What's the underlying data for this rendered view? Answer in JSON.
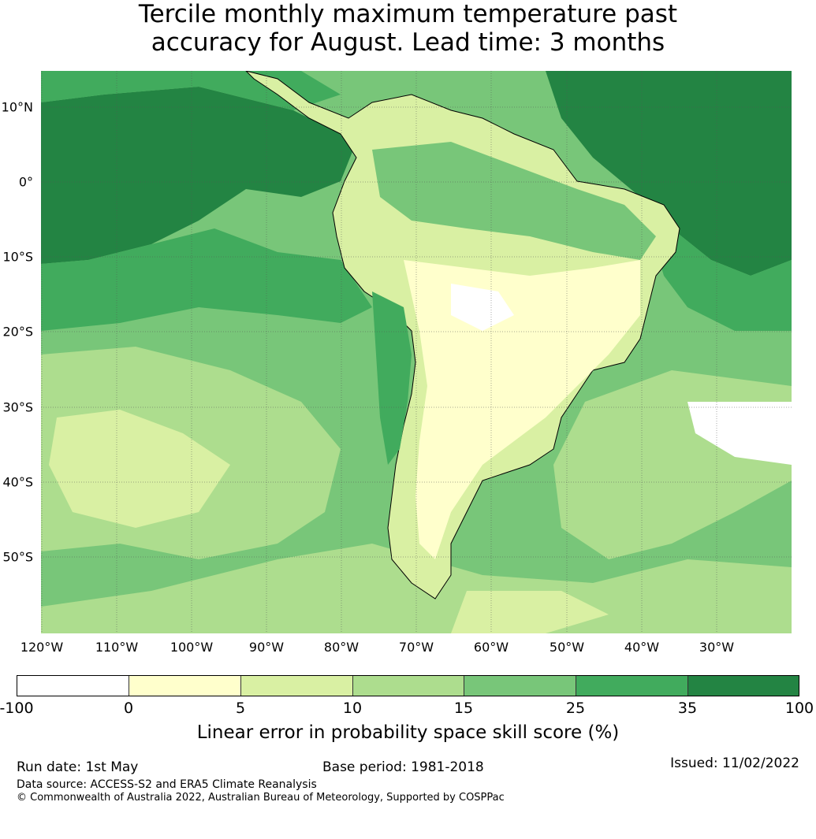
{
  "title": {
    "line1": "Tercile monthly maximum temperature past",
    "line2": "accuracy for August. Lead time: 3 months"
  },
  "map": {
    "lat_labels": [
      "10°N",
      "0°",
      "10°S",
      "20°S",
      "30°S",
      "40°S",
      "50°S"
    ],
    "lon_labels": [
      "120°W",
      "110°W",
      "100°W",
      "90°W",
      "80°W",
      "70°W",
      "60°W",
      "50°W",
      "40°W",
      "30°W"
    ],
    "land_color": "#ffffcc",
    "ocean_color": "#78c679",
    "coastline_color": "#000000"
  },
  "colorbar": {
    "ticks": [
      "-100",
      "0",
      "5",
      "10",
      "15",
      "25",
      "35",
      "100"
    ],
    "colors": [
      "#ffffff",
      "#ffffcc",
      "#d9f0a3",
      "#addd8e",
      "#78c679",
      "#41ab5d",
      "#238443"
    ],
    "label": "Linear error in probability space skill score (%)"
  },
  "footer": {
    "run_date": "Run date: 1st May",
    "base_period": "Base period: 1981-2018",
    "issued": "Issued: 11/02/2022",
    "data_source": "Data source: ACCESS-S2 and ERA5 Climate Reanalysis",
    "copyright": "© Commonwealth of Australia 2022, Australian Bureau of Meteorology, Supported by COSPPac"
  }
}
